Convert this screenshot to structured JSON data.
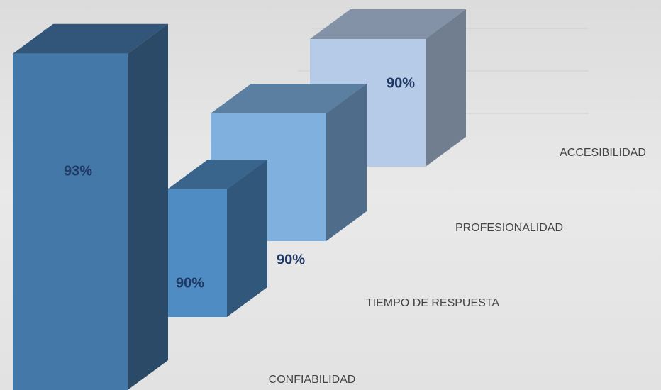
{
  "chart_data": {
    "type": "bar3d",
    "categories": [
      "CONFIABILIDAD",
      "TIEMPO DE RESPUESTA",
      "PROFESIONALIDAD",
      "ACCESIBILIDAD"
    ],
    "values": [
      93,
      90,
      90,
      90
    ],
    "value_labels": [
      "93%",
      "90%",
      "90%",
      "90%"
    ],
    "colors": [
      "#4478a8",
      "#4f8cc4",
      "#7fb0de",
      "#b6cbe8"
    ]
  }
}
